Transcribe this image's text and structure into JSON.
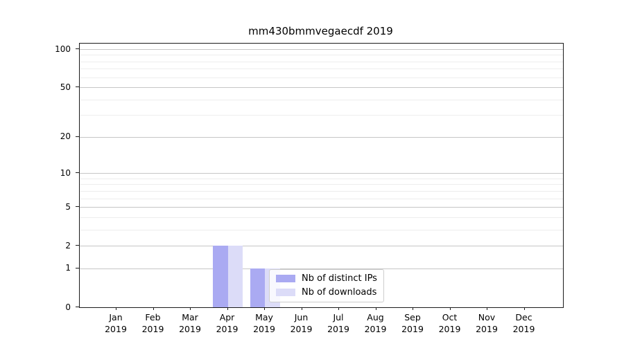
{
  "figure": {
    "title": "mm430bmmvegaecdf 2019"
  },
  "chart_data": {
    "type": "bar",
    "title": "mm430bmmvegaecdf 2019",
    "categories": [
      "Jan 2019",
      "Feb 2019",
      "Mar 2019",
      "Apr 2019",
      "May 2019",
      "Jun 2019",
      "Jul 2019",
      "Aug 2019",
      "Sep 2019",
      "Oct 2019",
      "Nov 2019",
      "Dec 2019"
    ],
    "series": [
      {
        "name": "Nb of distinct IPs",
        "color": "#aaaaf2",
        "values": [
          0,
          0,
          0,
          2,
          1,
          0,
          0,
          0,
          0,
          0,
          0,
          0
        ]
      },
      {
        "name": "Nb of downloads",
        "color": "#dcdcf8",
        "values": [
          0,
          0,
          0,
          2,
          1,
          0,
          0,
          0,
          0,
          0,
          0,
          0
        ]
      }
    ],
    "xlabel": "",
    "ylabel": "",
    "yscale": "log1p",
    "ylim": [
      0,
      110
    ],
    "y_major_ticks": [
      0,
      1,
      2,
      5,
      10,
      20,
      50,
      100
    ],
    "y_minor_ticks": [
      3,
      4,
      6,
      7,
      8,
      9,
      30,
      40,
      60,
      70,
      80,
      90
    ],
    "grid": "horizontal",
    "legend_position": "lower-center-inside",
    "colors": {
      "major_grid": "#c6c6c6",
      "minor_grid": "#ededed",
      "spine": "#1a1a1a",
      "text": "#000000"
    }
  }
}
